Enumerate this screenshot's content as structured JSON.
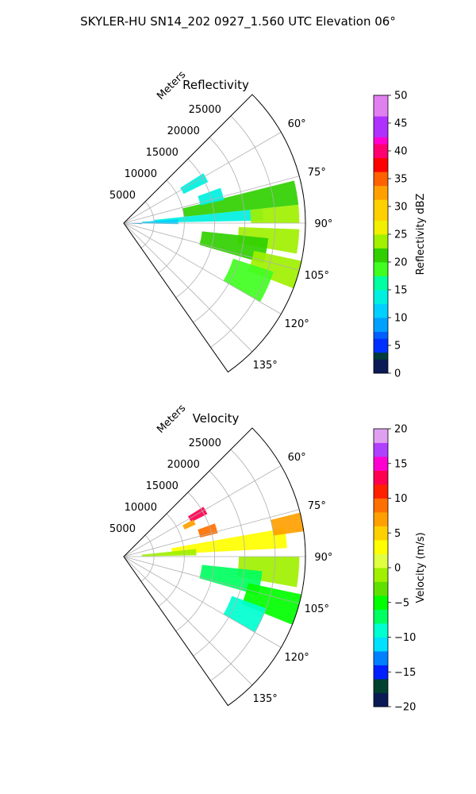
{
  "suptitle": "SKYLER-HU  SN14_202  0927_1.560 UTC Elevation 06°",
  "chart_data": [
    {
      "type": "heatmap",
      "projection": "polar-sector",
      "title": "Reflectivity",
      "radial_axis": {
        "label": "Meters",
        "range": [
          0,
          30000
        ],
        "ticks": [
          5000,
          10000,
          15000,
          20000,
          25000
        ],
        "tick_labels": [
          "5000",
          "10000",
          "15000",
          "20000",
          "25000"
        ]
      },
      "angular_axis": {
        "range_deg": [
          45,
          145
        ],
        "ticks_deg": [
          60,
          75,
          90,
          105,
          120,
          135
        ],
        "tick_labels": [
          "60°",
          "75°",
          "90°",
          "105°",
          "120°",
          "135°"
        ]
      },
      "colorbar": {
        "label": "Reflectivity dBZ",
        "range": [
          0,
          50
        ],
        "ticks": [
          0,
          5,
          10,
          15,
          20,
          25,
          30,
          35,
          40,
          45,
          50
        ],
        "tick_labels": [
          "0",
          "5",
          "10",
          "15",
          "20",
          "25",
          "30",
          "35",
          "40",
          "45",
          "50"
        ]
      },
      "regions": [
        {
          "az": [
            76,
            84
          ],
          "r": [
            10000,
            29000
          ],
          "value": 20
        },
        {
          "az": [
            84,
            89
          ],
          "r": [
            5000,
            23000
          ],
          "value": 14
        },
        {
          "az": [
            84,
            90
          ],
          "r": [
            21000,
            29000
          ],
          "value": 22
        },
        {
          "az": [
            92,
            100
          ],
          "r": [
            19000,
            29000
          ],
          "value": 24
        },
        {
          "az": [
            96,
            106
          ],
          "r": [
            13000,
            24000
          ],
          "value": 20
        },
        {
          "az": [
            102,
            111
          ],
          "r": [
            22000,
            30000
          ],
          "value": 22
        },
        {
          "az": [
            108,
            120
          ],
          "r": [
            19000,
            26000
          ],
          "value": 18
        },
        {
          "az": [
            70,
            77
          ],
          "r": [
            13000,
            17000
          ],
          "value": 13
        },
        {
          "az": [
            58,
            64
          ],
          "r": [
            11000,
            15500
          ],
          "value": 14
        },
        {
          "az": [
            86,
            91
          ],
          "r": [
            3000,
            9000
          ],
          "value": 10
        },
        {
          "az": [
            90,
            93
          ],
          "r": [
            500,
            3000
          ],
          "value": 8
        }
      ]
    },
    {
      "type": "heatmap",
      "projection": "polar-sector",
      "title": "Velocity",
      "radial_axis": {
        "label": "Meters",
        "range": [
          0,
          30000
        ],
        "ticks": [
          5000,
          10000,
          15000,
          20000,
          25000
        ],
        "tick_labels": [
          "5000",
          "10000",
          "15000",
          "20000",
          "25000"
        ]
      },
      "angular_axis": {
        "range_deg": [
          45,
          145
        ],
        "ticks_deg": [
          60,
          75,
          90,
          105,
          120,
          135
        ],
        "tick_labels": [
          "60°",
          "75°",
          "90°",
          "105°",
          "120°",
          "135°"
        ]
      },
      "colorbar": {
        "label": "Velocity (m/s)",
        "range": [
          -20,
          20
        ],
        "ticks": [
          -20,
          -15,
          -10,
          -5,
          0,
          5,
          10,
          15,
          20
        ],
        "tick_labels": [
          "−20",
          "−15",
          "−10",
          "−5",
          "0",
          "5",
          "10",
          "15",
          "20"
        ]
      },
      "regions": [
        {
          "az": [
            80,
            87
          ],
          "r": [
            8000,
            27000
          ],
          "value": 3
        },
        {
          "az": [
            76,
            82
          ],
          "r": [
            25000,
            30000
          ],
          "value": 7
        },
        {
          "az": [
            84,
            89
          ],
          "r": [
            3000,
            12000
          ],
          "value": -1
        },
        {
          "az": [
            90,
            100
          ],
          "r": [
            19000,
            29000
          ],
          "value": -2
        },
        {
          "az": [
            96,
            106
          ],
          "r": [
            13000,
            23000
          ],
          "value": -7
        },
        {
          "az": [
            102,
            112
          ],
          "r": [
            21000,
            30000
          ],
          "value": -6
        },
        {
          "az": [
            110,
            120
          ],
          "r": [
            19000,
            25000
          ],
          "value": -10
        },
        {
          "az": [
            70,
            76
          ],
          "r": [
            13000,
            16000
          ],
          "value": 9
        },
        {
          "az": [
            58,
            63
          ],
          "r": [
            12500,
            15500
          ],
          "value": 13
        },
        {
          "az": [
            62,
            66
          ],
          "r": [
            11000,
            13000
          ],
          "value": 6
        }
      ]
    }
  ]
}
